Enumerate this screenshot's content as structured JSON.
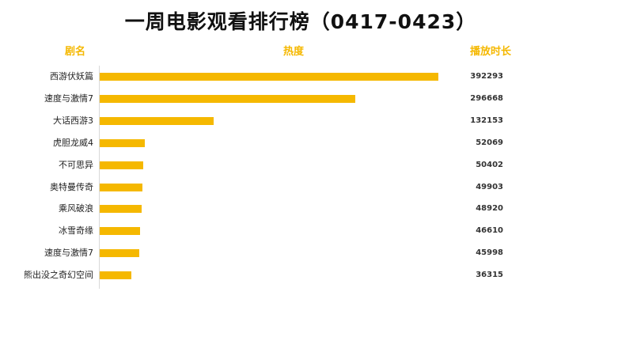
{
  "title": "一周电影观看排行榜（0417-0423）",
  "headers": {
    "name": "剧名",
    "heat": "热度",
    "duration": "播放时长"
  },
  "colors": {
    "bar": "#F5B800",
    "header": "#F5B800"
  },
  "chart_data": {
    "type": "bar",
    "orientation": "horizontal",
    "title": "一周电影观看排行榜（0417-0423）",
    "categories": [
      "西游伏妖篇",
      "速度与激情7",
      "大话西游3",
      "虎胆龙威4",
      "不可思异",
      "奥特曼传奇",
      "乘风破浪",
      "冰雪奇缘",
      "速度与激情7",
      "熊出没之奇幻空间"
    ],
    "values": [
      392293,
      296668,
      132153,
      52069,
      50402,
      49903,
      48920,
      46610,
      45998,
      36315
    ],
    "xlim": [
      0,
      400000
    ],
    "grid": false,
    "legend": "none"
  }
}
